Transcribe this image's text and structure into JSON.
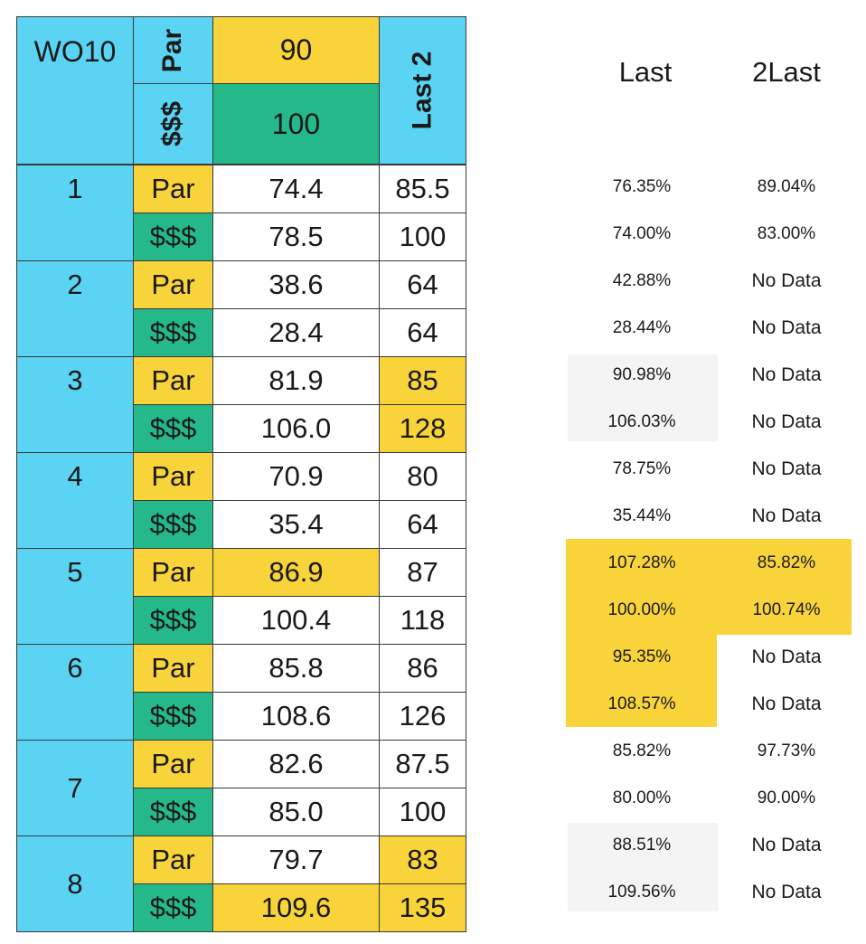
{
  "header": {
    "title": "WO10",
    "par_label": "Par",
    "money_label": "$$$",
    "par_target": "90",
    "money_target": "100",
    "last2_label": "Last 2"
  },
  "side_header": {
    "last": "Last",
    "two_last": "2Last"
  },
  "colors": {
    "blue": "#5bd3f2",
    "yellow": "#f8d33a",
    "green": "#25b98a"
  },
  "groups": [
    {
      "number": "1",
      "rows": [
        {
          "label": "Par",
          "value": "74.4",
          "last2": "85.5",
          "last_pct": "76.35%",
          "two_last_pct": "89.04%"
        },
        {
          "label": "$$$",
          "value": "78.5",
          "last2": "100",
          "last_pct": "74.00%",
          "two_last_pct": "83.00%"
        }
      ]
    },
    {
      "number": "2",
      "rows": [
        {
          "label": "Par",
          "value": "38.6",
          "last2": "64",
          "last_pct": "42.88%",
          "two_last_pct": "No Data"
        },
        {
          "label": "$$$",
          "value": "28.4",
          "last2": "64",
          "last_pct": "28.44%",
          "two_last_pct": "No Data"
        }
      ]
    },
    {
      "number": "3",
      "rows": [
        {
          "label": "Par",
          "value": "81.9",
          "last2": "85",
          "last_pct": "90.98%",
          "two_last_pct": "No Data",
          "last2_highlight": true
        },
        {
          "label": "$$$",
          "value": "106.0",
          "last2": "128",
          "last_pct": "106.03%",
          "two_last_pct": "No Data",
          "last2_highlight": true
        }
      ]
    },
    {
      "number": "4",
      "rows": [
        {
          "label": "Par",
          "value": "70.9",
          "last2": "80",
          "last_pct": "78.75%",
          "two_last_pct": "No Data"
        },
        {
          "label": "$$$",
          "value": "35.4",
          "last2": "64",
          "last_pct": "35.44%",
          "two_last_pct": "No Data"
        }
      ]
    },
    {
      "number": "5",
      "rows": [
        {
          "label": "Par",
          "value": "86.9",
          "last2": "87",
          "last_pct": "107.28%",
          "two_last_pct": "85.82%",
          "value_highlight": true,
          "last_hl": true,
          "two_last_hl": true
        },
        {
          "label": "$$$",
          "value": "100.4",
          "last2": "118",
          "last_pct": "100.00%",
          "two_last_pct": "100.74%",
          "last_hl": true,
          "two_last_hl": true
        }
      ]
    },
    {
      "number": "6",
      "rows": [
        {
          "label": "Par",
          "value": "85.8",
          "last2": "86",
          "last_pct": "95.35%",
          "two_last_pct": "No Data",
          "last_hl": true
        },
        {
          "label": "$$$",
          "value": "108.6",
          "last2": "126",
          "last_pct": "108.57%",
          "two_last_pct": "No Data",
          "last_hl": true
        }
      ]
    },
    {
      "number": "7",
      "rows": [
        {
          "label": "Par",
          "value": "82.6",
          "last2": "87.5",
          "last_pct": "85.82%",
          "two_last_pct": "97.73%"
        },
        {
          "label": "$$$",
          "value": "85.0",
          "last2": "100",
          "last_pct": "80.00%",
          "two_last_pct": "90.00%"
        }
      ]
    },
    {
      "number": "8",
      "rows": [
        {
          "label": "Par",
          "value": "79.7",
          "last2": "83",
          "last_pct": "88.51%",
          "two_last_pct": "No Data",
          "last2_highlight": true
        },
        {
          "label": "$$$",
          "value": "109.6",
          "last2": "135",
          "last_pct": "109.56%",
          "two_last_pct": "No Data",
          "value_highlight": true,
          "last2_highlight": true
        }
      ]
    }
  ]
}
